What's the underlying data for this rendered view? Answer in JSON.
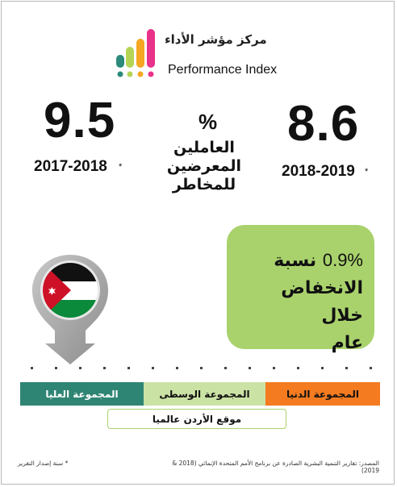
{
  "brand": {
    "arabic_name": "مركز مؤشر الأداء",
    "english_name": "Performance Index",
    "colors": {
      "pink": "#e9328a",
      "orange": "#f5a623",
      "light_green": "#b4d455",
      "teal": "#2b8a7a"
    }
  },
  "stats": {
    "left": {
      "value": "9.5",
      "year": "2017-2018",
      "marker": "*"
    },
    "right": {
      "value": "8.6",
      "year": "2018-2019",
      "marker": "*"
    },
    "unit": "%",
    "label": "العاملين المعرضين للمخاطر"
  },
  "highlight": {
    "number": "0.9%",
    "text_1": "نسبة",
    "text_2": "الانخفاض خلال",
    "text_3": "عام",
    "color": "#a9d26c"
  },
  "pin": {
    "icon": "jordan-flag-icon"
  },
  "groups": {
    "high": {
      "label": "المجموعة العليا",
      "color": "#2f8573"
    },
    "mid": {
      "label": "المجموعة الوسطى",
      "color": "#cbe2a5"
    },
    "low": {
      "label": "المجموعة الدنيا",
      "color": "#f47b20"
    }
  },
  "jordan_position_label": "موقع الأردن عالميا",
  "footer": {
    "source": "المصدر: تقارير التنمية البشرية الصادرة عن برنامج الأمم المتحدة الإنمائي (2018 & 2019)",
    "footnote": "* سنة إصدار التقرير"
  }
}
